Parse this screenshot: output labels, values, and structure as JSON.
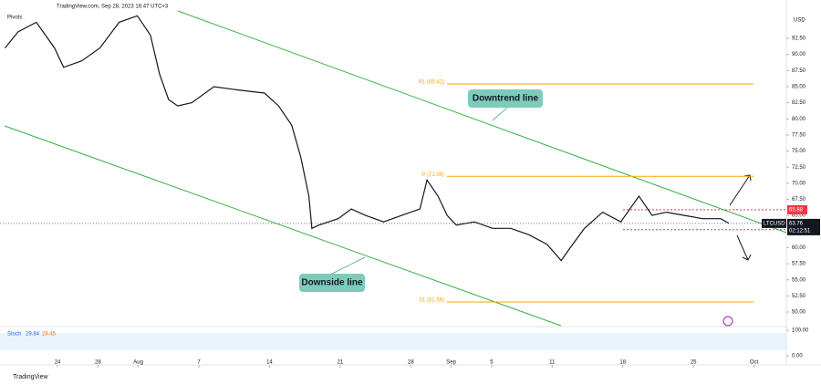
{
  "header": "TradingView.com, Sep 28, 2023 16:47 UTC+3",
  "indicator": "Pivots",
  "currency": "USD",
  "brand": "TradingView",
  "chart_data": {
    "type": "line",
    "symbol": "LTCUSD",
    "countdown": "02:12:51",
    "color": "#131722",
    "x": [
      199.8,
      201.1,
      202.9,
      204.7,
      205.6,
      207.4,
      209.2,
      211.1,
      212.9,
      214.2,
      215.1,
      216.0,
      216.9,
      218.3,
      220.5,
      222.8,
      225.5,
      226.9,
      228.2,
      229.1,
      229.9,
      230.2,
      230.9,
      232.8,
      234.1,
      235.5,
      237.3,
      239.1,
      240.9,
      241.6,
      242.7,
      243.6,
      244.5,
      246.3,
      248.1,
      249.9,
      251.7,
      253.5,
      254.9,
      255.8,
      257.2,
      259.0,
      260.8,
      262.6,
      263.9,
      265.3,
      267.1,
      268.9,
      270.7,
      271.5
    ],
    "values": [
      91,
      93.5,
      95,
      91,
      88,
      89,
      91,
      95,
      96,
      93,
      87,
      83,
      82,
      82.5,
      85,
      84.5,
      84,
      82,
      79,
      74,
      68,
      63,
      63.5,
      64.5,
      66,
      65,
      64,
      65,
      66,
      70.5,
      68,
      65,
      63.5,
      64,
      63,
      63,
      62,
      60.5,
      58,
      60,
      63,
      65.5,
      64,
      68,
      65,
      65.5,
      65,
      64.5,
      64.5,
      63.8
    ],
    "last_price": 63.76,
    "levels": [
      65.88,
      62.79
    ],
    "pivots": [
      {
        "value": 85.42,
        "label": "R1 (85.42)"
      },
      {
        "value": 71.08,
        "label": "P (71.08)"
      },
      {
        "value": 51.56,
        "label": "S1 (51.56)"
      }
    ],
    "annotations": [
      "Downtrend line",
      "Downside line"
    ],
    "xlim": [
      199.3,
      277.2
    ],
    "ylim": [
      47.88,
      98.45
    ],
    "xticks": [
      {
        "value": 205,
        "label": "24"
      },
      {
        "value": 209,
        "label": "28"
      },
      {
        "value": 213,
        "label": "Aug"
      },
      {
        "value": 219,
        "label": "7"
      },
      {
        "value": 226,
        "label": "14"
      },
      {
        "value": 233,
        "label": "21"
      },
      {
        "value": 240,
        "label": "28"
      },
      {
        "value": 244,
        "label": "Sep"
      },
      {
        "value": 248,
        "label": "5"
      },
      {
        "value": 254,
        "label": "11"
      },
      {
        "value": 261,
        "label": "18"
      },
      {
        "value": 268,
        "label": "25"
      },
      {
        "value": 274,
        "label": "Oct"
      }
    ],
    "yticks": [
      {
        "value": 92.5,
        "label": "92.50"
      },
      {
        "value": 90,
        "label": "90.00"
      },
      {
        "value": 87.5,
        "label": "87.50"
      },
      {
        "value": 85,
        "label": "85.00"
      },
      {
        "value": 82.5,
        "label": "82.50"
      },
      {
        "value": 80,
        "label": "80.00"
      },
      {
        "value": 77.5,
        "label": "77.50"
      },
      {
        "value": 75,
        "label": "75.00"
      },
      {
        "value": 72.5,
        "label": "72.50"
      },
      {
        "value": 70,
        "label": "70.00"
      },
      {
        "value": 67.5,
        "label": "67.50"
      },
      {
        "value": 65,
        "label": "65.00"
      },
      {
        "value": 60,
        "label": "60.00"
      },
      {
        "value": 57.5,
        "label": "57.50"
      },
      {
        "value": 55,
        "label": "55.00"
      },
      {
        "value": 52.5,
        "label": "52.50"
      },
      {
        "value": 50,
        "label": "50.00"
      }
    ],
    "osc_label": "Stoch",
    "osc_values": [
      29.84,
      24.45
    ],
    "osc_ylim": [
      0,
      100
    ],
    "osc_yticks": [
      {
        "value": 100,
        "label": "100.00"
      },
      {
        "value": 0,
        "label": "0.00"
      }
    ]
  }
}
